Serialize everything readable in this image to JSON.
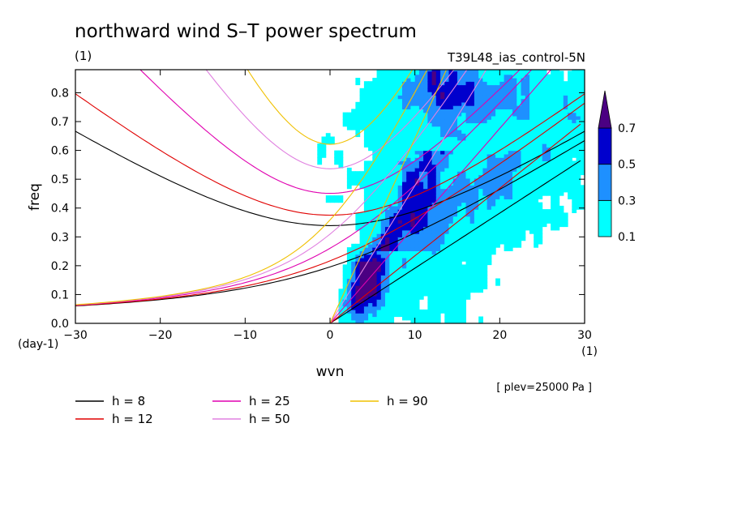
{
  "chart_data": {
    "type": "heatmap",
    "title": "northward wind S–T power spectrum",
    "units_label": "(1)",
    "run_label": "T39L48_ias_control-5N",
    "xlabel": "wvn",
    "ylabel": "freq",
    "x_unit": "(1)",
    "y_unit": "(day-1)",
    "xlim": [
      -30,
      30
    ],
    "ylim": [
      0,
      0.88
    ],
    "x_ticks": [
      -30,
      -20,
      -10,
      0,
      10,
      20,
      30
    ],
    "x_tick_labels": [
      "−30",
      "−20",
      "−10",
      "0",
      "10",
      "20",
      "30"
    ],
    "y_ticks": [
      0,
      0.1,
      0.2,
      0.3,
      0.4,
      0.5,
      0.6,
      0.7,
      0.8
    ],
    "y_tick_labels": [
      "0.0",
      "0.1",
      "0.2",
      "0.3",
      "0.4",
      "0.5",
      "0.6",
      "0.7",
      "0.8"
    ],
    "colorbar": {
      "levels": [
        0.1,
        0.3,
        0.5,
        0.7
      ],
      "level_labels": [
        "0.1",
        "0.3",
        "0.5",
        "0.7"
      ],
      "colors": [
        "#00ffff",
        "#1e90ff",
        "#0000cd",
        "#4b0082"
      ]
    },
    "power_regions": [
      {
        "name": "kelvin-band",
        "level": 0.7,
        "x": [
          1,
          5
        ],
        "y_from": 0.02,
        "y_to": 0.28
      },
      {
        "name": "kelvin-band-upper",
        "level": 0.5,
        "x": [
          6,
          12
        ],
        "y_from": 0.28,
        "y_to": 0.55
      },
      {
        "name": "upper-right-maximum",
        "level": 0.5,
        "x": [
          10,
          20
        ],
        "y_from": 0.7,
        "y_to": 0.88
      }
    ],
    "dispersion_curves": [
      {
        "label": "h =  8",
        "h": 8,
        "color": "#000000"
      },
      {
        "label": "h = 12",
        "h": 12,
        "color": "#e00000"
      },
      {
        "label": "h = 25",
        "h": 25,
        "color": "#e000b0"
      },
      {
        "label": "h = 50",
        "h": 50,
        "color": "#e080e0"
      },
      {
        "label": "h = 90",
        "h": 90,
        "color": "#f0c000"
      }
    ],
    "annotation": "[ plev=25000 Pa ]",
    "legend_position": "bottom-left"
  }
}
